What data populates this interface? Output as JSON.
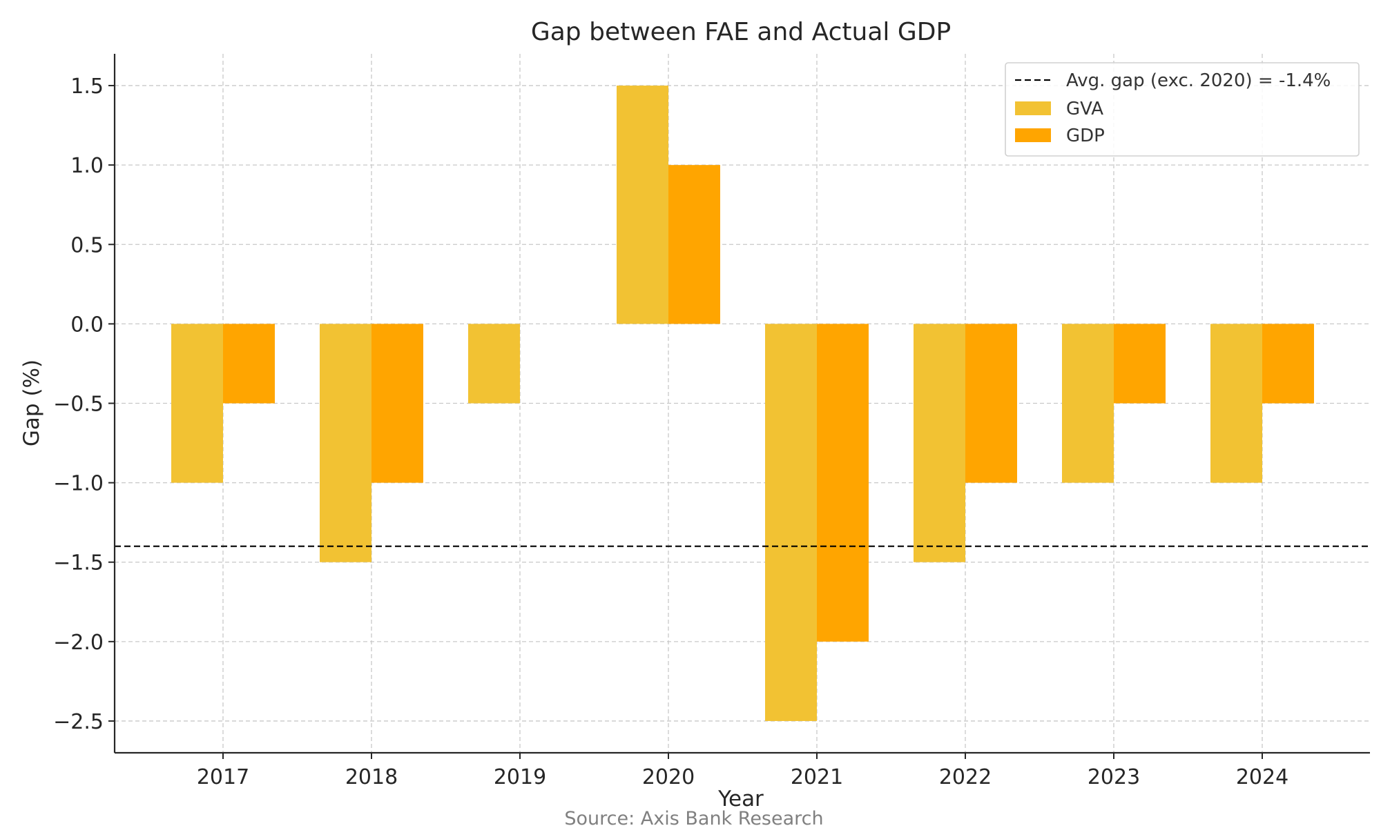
{
  "chart_data": {
    "type": "bar",
    "title": "Gap between FAE and Actual GDP",
    "xlabel": "Year",
    "ylabel": "Gap (%)",
    "categories": [
      "2017",
      "2018",
      "2019",
      "2020",
      "2021",
      "2022",
      "2023",
      "2024"
    ],
    "series": [
      {
        "name": "GVA",
        "color": "#F2C233",
        "values": [
          -1.0,
          -1.5,
          -0.5,
          1.5,
          -2.5,
          -1.5,
          -1.0,
          -1.0
        ]
      },
      {
        "name": "GDP",
        "color": "#FFA500",
        "values": [
          -0.5,
          -1.0,
          null,
          1.0,
          -2.0,
          -1.0,
          -0.5,
          -0.5
        ]
      }
    ],
    "reference_line": {
      "label": "Avg. gap (exc. 2020) = -1.4%",
      "value": -1.4,
      "style": "dashed",
      "color": "#000000"
    },
    "ylim": [
      -2.7,
      1.7
    ],
    "yticks": [
      1.5,
      1.0,
      0.5,
      0.0,
      -0.5,
      -1.0,
      -1.5,
      -2.0,
      -2.5
    ],
    "ytick_labels": [
      "1.5",
      "1.0",
      "0.5",
      "0.0",
      "−0.5",
      "−1.0",
      "−1.5",
      "−2.0",
      "−2.5"
    ],
    "grid": true,
    "legend_position": "top-right",
    "source": "Source: Axis Bank Research"
  }
}
